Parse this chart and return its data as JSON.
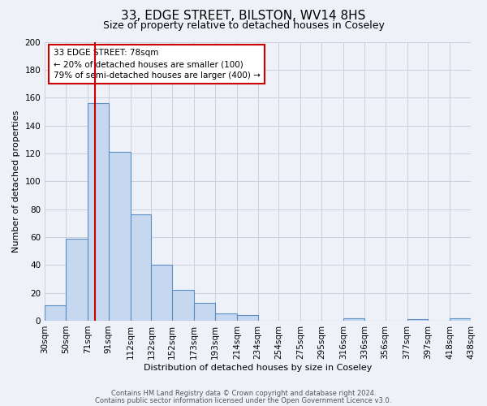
{
  "title": "33, EDGE STREET, BILSTON, WV14 8HS",
  "subtitle": "Size of property relative to detached houses in Coseley",
  "xlabel": "Distribution of detached houses by size in Coseley",
  "ylabel": "Number of detached properties",
  "bin_edges": [
    30,
    50,
    71,
    91,
    112,
    132,
    152,
    173,
    193,
    214,
    234,
    254,
    275,
    295,
    316,
    336,
    356,
    377,
    397,
    418,
    438
  ],
  "bin_labels": [
    "30sqm",
    "50sqm",
    "71sqm",
    "91sqm",
    "112sqm",
    "132sqm",
    "152sqm",
    "173sqm",
    "193sqm",
    "214sqm",
    "234sqm",
    "254sqm",
    "275sqm",
    "295sqm",
    "316sqm",
    "336sqm",
    "356sqm",
    "377sqm",
    "397sqm",
    "418sqm",
    "438sqm"
  ],
  "counts": [
    11,
    59,
    156,
    121,
    76,
    40,
    22,
    13,
    5,
    4,
    0,
    0,
    0,
    0,
    2,
    0,
    0,
    1,
    0,
    2
  ],
  "bar_facecolor": "#c5d8f0",
  "bar_edgecolor": "#5b8fc4",
  "grid_color": "#c8d0de",
  "background_color": "#eef2f8",
  "vline_x": 78,
  "vline_color": "#cc0000",
  "ylim": [
    0,
    200
  ],
  "yticks": [
    0,
    20,
    40,
    60,
    80,
    100,
    120,
    140,
    160,
    180,
    200
  ],
  "annotation_line1": "33 EDGE STREET: 78sqm",
  "annotation_line2": "← 20% of detached houses are smaller (100)",
  "annotation_line3": "79% of semi-detached houses are larger (400) →",
  "footer_line1": "Contains HM Land Registry data © Crown copyright and database right 2024.",
  "footer_line2": "Contains public sector information licensed under the Open Government Licence v3.0.",
  "title_fontsize": 11,
  "subtitle_fontsize": 9,
  "xlabel_fontsize": 8,
  "ylabel_fontsize": 8,
  "tick_fontsize": 7.5,
  "annot_fontsize": 7.5,
  "footer_fontsize": 6
}
